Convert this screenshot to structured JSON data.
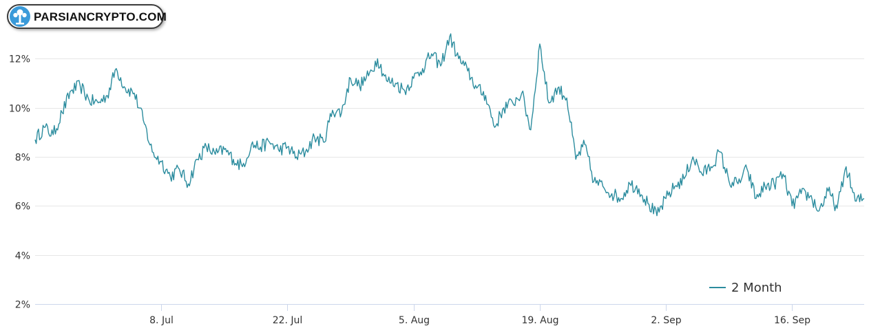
{
  "logo": {
    "text": "PARSIANCRYPTO.COM",
    "icon": "tree-icon",
    "color": "#3a9ad9"
  },
  "chart_data": {
    "type": "line",
    "title": "",
    "xlabel": "",
    "ylabel": "",
    "ylim": [
      2,
      14
    ],
    "y_ticks": [
      {
        "value": 2,
        "label": "2%"
      },
      {
        "value": 4,
        "label": "4%"
      },
      {
        "value": 6,
        "label": "6%"
      },
      {
        "value": 8,
        "label": "8%"
      },
      {
        "value": 10,
        "label": "10%"
      },
      {
        "value": 12,
        "label": "12%"
      }
    ],
    "xlim": [
      "2024-06-24",
      "2024-09-24"
    ],
    "x_ticks": [
      {
        "value": "2024-07-08",
        "label": "8. Jul"
      },
      {
        "value": "2024-07-22",
        "label": "22. Jul"
      },
      {
        "value": "2024-08-05",
        "label": "5. Aug"
      },
      {
        "value": "2024-08-19",
        "label": "19. Aug"
      },
      {
        "value": "2024-09-02",
        "label": "2. Sep"
      },
      {
        "value": "2024-09-16",
        "label": "16. Sep"
      }
    ],
    "grid": true,
    "legend": "bottom-right",
    "series": [
      {
        "name": "2 Month",
        "color": "#2b8c9e",
        "points": [
          [
            "2024-06-24",
            8.7
          ],
          [
            "2024-06-25",
            9.2
          ],
          [
            "2024-06-26",
            8.9
          ],
          [
            "2024-06-27",
            9.8
          ],
          [
            "2024-06-28",
            10.7
          ],
          [
            "2024-06-29",
            10.9
          ],
          [
            "2024-06-30",
            10.3
          ],
          [
            "2024-07-01",
            10.2
          ],
          [
            "2024-07-02",
            10.5
          ],
          [
            "2024-07-03",
            11.6
          ],
          [
            "2024-07-04",
            10.8
          ],
          [
            "2024-07-05",
            10.6
          ],
          [
            "2024-07-06",
            9.5
          ],
          [
            "2024-07-07",
            8.2
          ],
          [
            "2024-07-08",
            7.8
          ],
          [
            "2024-07-09",
            7.2
          ],
          [
            "2024-07-10",
            7.5
          ],
          [
            "2024-07-11",
            6.9
          ],
          [
            "2024-07-12",
            7.9
          ],
          [
            "2024-07-13",
            8.4
          ],
          [
            "2024-07-14",
            8.1
          ],
          [
            "2024-07-15",
            8.3
          ],
          [
            "2024-07-16",
            7.9
          ],
          [
            "2024-07-17",
            7.6
          ],
          [
            "2024-07-18",
            8.5
          ],
          [
            "2024-07-19",
            8.4
          ],
          [
            "2024-07-20",
            8.6
          ],
          [
            "2024-07-21",
            8.3
          ],
          [
            "2024-07-22",
            8.4
          ],
          [
            "2024-07-23",
            8.0
          ],
          [
            "2024-07-24",
            8.2
          ],
          [
            "2024-07-25",
            8.8
          ],
          [
            "2024-07-26",
            8.6
          ],
          [
            "2024-07-27",
            9.9
          ],
          [
            "2024-07-28",
            9.8
          ],
          [
            "2024-07-29",
            11.2
          ],
          [
            "2024-07-30",
            10.9
          ],
          [
            "2024-07-31",
            11.3
          ],
          [
            "2024-08-01",
            12.0
          ],
          [
            "2024-08-02",
            11.1
          ],
          [
            "2024-08-03",
            11.0
          ],
          [
            "2024-08-04",
            10.7
          ],
          [
            "2024-08-05",
            11.2
          ],
          [
            "2024-08-06",
            11.6
          ],
          [
            "2024-08-07",
            12.2
          ],
          [
            "2024-08-08",
            11.7
          ],
          [
            "2024-08-09",
            12.9
          ],
          [
            "2024-08-10",
            12.0
          ],
          [
            "2024-08-11",
            11.5
          ],
          [
            "2024-08-12",
            10.8
          ],
          [
            "2024-08-13",
            10.5
          ],
          [
            "2024-08-14",
            9.2
          ],
          [
            "2024-08-15",
            10.0
          ],
          [
            "2024-08-16",
            10.2
          ],
          [
            "2024-08-17",
            10.6
          ],
          [
            "2024-08-18",
            9.1
          ],
          [
            "2024-08-19",
            12.6
          ],
          [
            "2024-08-20",
            10.2
          ],
          [
            "2024-08-21",
            10.8
          ],
          [
            "2024-08-22",
            10.4
          ],
          [
            "2024-08-23",
            7.9
          ],
          [
            "2024-08-24",
            8.5
          ],
          [
            "2024-08-25",
            7.0
          ],
          [
            "2024-08-26",
            6.8
          ],
          [
            "2024-08-27",
            6.5
          ],
          [
            "2024-08-28",
            6.3
          ],
          [
            "2024-08-29",
            6.9
          ],
          [
            "2024-08-30",
            6.7
          ],
          [
            "2024-08-31",
            6.1
          ],
          [
            "2024-09-01",
            5.6
          ],
          [
            "2024-09-02",
            6.3
          ],
          [
            "2024-09-03",
            6.8
          ],
          [
            "2024-09-04",
            7.1
          ],
          [
            "2024-09-05",
            8.0
          ],
          [
            "2024-09-06",
            7.3
          ],
          [
            "2024-09-07",
            7.6
          ],
          [
            "2024-09-08",
            8.2
          ],
          [
            "2024-09-09",
            7.0
          ],
          [
            "2024-09-10",
            6.9
          ],
          [
            "2024-09-11",
            7.5
          ],
          [
            "2024-09-12",
            6.3
          ],
          [
            "2024-09-13",
            6.8
          ],
          [
            "2024-09-14",
            6.9
          ],
          [
            "2024-09-15",
            7.3
          ],
          [
            "2024-09-16",
            6.0
          ],
          [
            "2024-09-17",
            6.5
          ],
          [
            "2024-09-18",
            6.4
          ],
          [
            "2024-09-19",
            5.8
          ],
          [
            "2024-09-20",
            6.6
          ],
          [
            "2024-09-21",
            5.9
          ],
          [
            "2024-09-22",
            7.6
          ],
          [
            "2024-09-23",
            6.2
          ],
          [
            "2024-09-24",
            6.3
          ]
        ]
      }
    ]
  }
}
